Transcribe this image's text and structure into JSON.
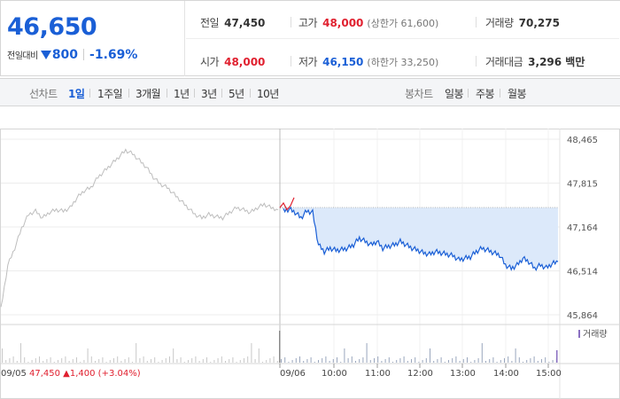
{
  "quote": {
    "price": "46,650",
    "change_label": "전일대비",
    "change_amount": "800",
    "change_percent": "-1.69%",
    "prev_close_label": "전일",
    "prev_close": "47,450",
    "high_label": "고가",
    "high": "48,000",
    "upper_limit_label": "(상한가 61,600)",
    "volume_label": "거래량",
    "volume": "70,275",
    "open_label": "시가",
    "open": "48,000",
    "low_label": "저가",
    "low": "46,150",
    "lower_limit_label": "(하한가 33,250)",
    "trade_value_label": "거래대금",
    "trade_value": "3,296 백만"
  },
  "toolbar": {
    "line_chart_label": "선차트",
    "periods": [
      "1일",
      "1주일",
      "3개월",
      "1년",
      "3년",
      "5년",
      "10년"
    ],
    "active_period": "1일",
    "candle_chart_label": "봉차트",
    "candles": [
      "일봉",
      "주봉",
      "월봉"
    ]
  },
  "chart_data": {
    "type": "line",
    "y_ticks": [
      "48,465",
      "47,815",
      "47,164",
      "46,514",
      "45,864"
    ],
    "ylim": [
      45864,
      48465
    ],
    "prev_close_line": 47450,
    "volume_legend": "거래량",
    "prev_day": {
      "date_label": "09/05",
      "close": "47,450",
      "change": "1,400",
      "change_pct": "(+3.04%)"
    },
    "x_ticks": [
      "09/06",
      "10:00",
      "11:00",
      "12:00",
      "13:00",
      "14:00",
      "15:00"
    ],
    "prev_day_series": [
      45950,
      46600,
      46850,
      47150,
      47350,
      47400,
      47300,
      47380,
      47420,
      47400,
      47450,
      47600,
      47700,
      47750,
      47900,
      48000,
      48100,
      48200,
      48300,
      48250,
      48150,
      48050,
      47900,
      47800,
      47750,
      47650,
      47550,
      47450,
      47350,
      47300,
      47350,
      47320,
      47300,
      47380,
      47450,
      47420,
      47380,
      47450,
      47500,
      47450,
      47420
    ],
    "today_series": [
      47400,
      47430,
      47380,
      47300,
      47400,
      47380,
      46900,
      46800,
      46850,
      46820,
      46830,
      46850,
      46900,
      47000,
      46950,
      46900,
      46950,
      46850,
      46880,
      46900,
      46950,
      46900,
      46850,
      46820,
      46780,
      46760,
      46800,
      46780,
      46760,
      46740,
      46680,
      46700,
      46720,
      46800,
      46850,
      46820,
      46780,
      46750,
      46600,
      46550,
      46600,
      46700,
      46650,
      46550,
      46600,
      46560,
      46620,
      46650
    ],
    "today_open_spike": [
      47450,
      47520,
      47420,
      47480,
      47600
    ]
  }
}
